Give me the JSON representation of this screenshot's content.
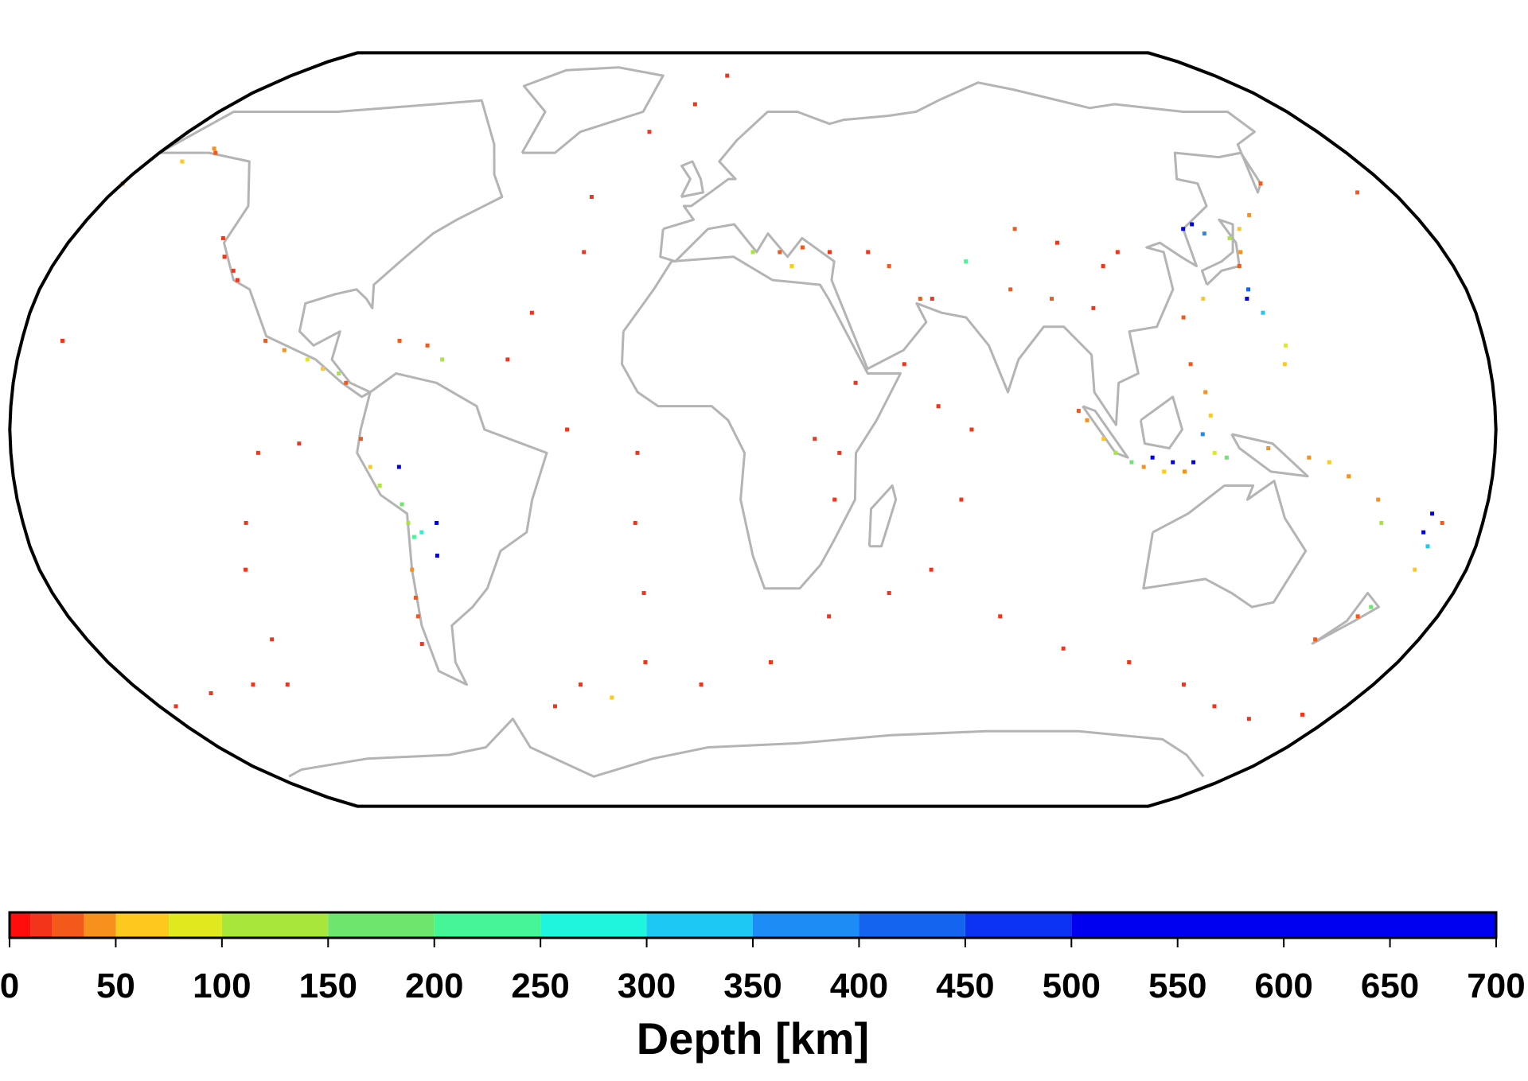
{
  "chart_data": {
    "type": "map",
    "points": [
      [
        -175,
        51,
        30
      ],
      [
        -165,
        53,
        40
      ],
      [
        -155,
        58,
        50
      ],
      [
        -150,
        61,
        40
      ],
      [
        -148,
        60,
        20
      ],
      [
        -125,
        41,
        10
      ],
      [
        -122,
        37,
        10
      ],
      [
        -118,
        34,
        10
      ],
      [
        -116,
        32,
        10
      ],
      [
        -105,
        19,
        20
      ],
      [
        -100,
        17,
        40
      ],
      [
        -94,
        15,
        80
      ],
      [
        -90,
        13,
        60
      ],
      [
        -86,
        12,
        100
      ],
      [
        -84,
        10,
        30
      ],
      [
        -72,
        19,
        20
      ],
      [
        -65,
        18,
        30
      ],
      [
        -61,
        15,
        120
      ],
      [
        -80,
        -2,
        30
      ],
      [
        -78,
        -8,
        60
      ],
      [
        -76,
        -12,
        100
      ],
      [
        -71,
        -16,
        150
      ],
      [
        -70,
        -20,
        120
      ],
      [
        -69,
        -23,
        220
      ],
      [
        -67,
        -22,
        250
      ],
      [
        -71,
        -30,
        40
      ],
      [
        -72,
        -36,
        30
      ],
      [
        -73,
        -40,
        20
      ],
      [
        -75,
        -46,
        10
      ],
      [
        -63,
        -20,
        560
      ],
      [
        -64,
        -27,
        580
      ],
      [
        -71,
        -8,
        600
      ],
      [
        -105,
        -5,
        10
      ],
      [
        -110,
        -20,
        10
      ],
      [
        -113,
        -30,
        10
      ],
      [
        -115,
        -45,
        10
      ],
      [
        -120,
        -55,
        10
      ],
      [
        -130,
        -55,
        10
      ],
      [
        -145,
        -57,
        10
      ],
      [
        -95,
        -3,
        10
      ],
      [
        -30,
        50,
        10
      ],
      [
        -29,
        38,
        10
      ],
      [
        -40,
        25,
        10
      ],
      [
        -45,
        15,
        10
      ],
      [
        -30,
        0,
        10
      ],
      [
        -13,
        -5,
        10
      ],
      [
        -14,
        -20,
        10
      ],
      [
        -13,
        -35,
        10
      ],
      [
        -15,
        -50,
        10
      ],
      [
        -18,
        65,
        10
      ],
      [
        -5,
        72,
        10
      ],
      [
        5,
        80,
        10
      ],
      [
        -27,
        -58,
        50
      ],
      [
        -35,
        -55,
        10
      ],
      [
        -45,
        -60,
        10
      ],
      [
        0,
        -55,
        10
      ],
      [
        20,
        -50,
        10
      ],
      [
        35,
        -40,
        10
      ],
      [
        50,
        -35,
        10
      ],
      [
        60,
        -30,
        10
      ],
      [
        66,
        -15,
        10
      ],
      [
        68,
        0,
        10
      ],
      [
        60,
        5,
        10
      ],
      [
        52,
        14,
        10
      ],
      [
        80,
        -40,
        10
      ],
      [
        100,
        -47,
        10
      ],
      [
        120,
        -50,
        10
      ],
      [
        140,
        -55,
        10
      ],
      [
        155,
        -60,
        10
      ],
      [
        170,
        -63,
        10
      ],
      [
        -175,
        -62,
        10
      ],
      [
        -160,
        -60,
        10
      ],
      [
        36,
        -5,
        10
      ],
      [
        30,
        -2,
        10
      ],
      [
        40,
        10,
        10
      ],
      [
        35,
        -15,
        10
      ],
      [
        22,
        38,
        20
      ],
      [
        25,
        35,
        60
      ],
      [
        15,
        38,
        100
      ],
      [
        28,
        39,
        20
      ],
      [
        35,
        38,
        10
      ],
      [
        45,
        38,
        10
      ],
      [
        50,
        35,
        20
      ],
      [
        57,
        28,
        30
      ],
      [
        60,
        28,
        10
      ],
      [
        70,
        36,
        200
      ],
      [
        80,
        30,
        20
      ],
      [
        90,
        28,
        20
      ],
      [
        100,
        26,
        10
      ],
      [
        95,
        40,
        10
      ],
      [
        105,
        35,
        10
      ],
      [
        85,
        43,
        20
      ],
      [
        110,
        38,
        10
      ],
      [
        94,
        4,
        30
      ],
      [
        96,
        2,
        40
      ],
      [
        100,
        -2,
        60
      ],
      [
        103,
        -5,
        100
      ],
      [
        107,
        -7,
        150
      ],
      [
        110,
        -8,
        40
      ],
      [
        115,
        -9,
        60
      ],
      [
        120,
        -9,
        40
      ],
      [
        112,
        -6,
        580
      ],
      [
        117,
        -7,
        600
      ],
      [
        122,
        -7,
        620
      ],
      [
        126,
        3,
        60
      ],
      [
        125,
        8,
        40
      ],
      [
        122,
        14,
        30
      ],
      [
        124,
        -1,
        350
      ],
      [
        127,
        -5,
        80
      ],
      [
        130,
        -6,
        150
      ],
      [
        140,
        -4,
        40
      ],
      [
        150,
        -6,
        40
      ],
      [
        155,
        -7,
        60
      ],
      [
        142,
        38,
        40
      ],
      [
        141,
        41,
        100
      ],
      [
        140,
        35,
        30
      ],
      [
        145,
        43,
        60
      ],
      [
        150,
        46,
        40
      ],
      [
        160,
        53,
        30
      ],
      [
        135,
        42,
        380
      ],
      [
        133,
        44,
        560
      ],
      [
        130,
        43,
        550
      ],
      [
        142,
        25,
        300
      ],
      [
        146,
        18,
        90
      ],
      [
        145,
        14,
        50
      ],
      [
        140,
        30,
        420
      ],
      [
        139,
        28,
        520
      ],
      [
        -175,
        -20,
        30
      ],
      [
        -178,
        -18,
        560
      ],
      [
        -179,
        -22,
        600
      ],
      [
        -177,
        -25,
        300
      ],
      [
        -178,
        -30,
        60
      ],
      [
        174,
        -40,
        20
      ],
      [
        176,
        -38,
        150
      ],
      [
        167,
        -45,
        30
      ],
      [
        168,
        -15,
        40
      ],
      [
        170,
        -20,
        100
      ],
      [
        160,
        -10,
        40
      ],
      [
        122,
        24,
        30
      ],
      [
        128,
        28,
        70
      ],
      [
        -155,
        19,
        10
      ]
    ],
    "colorbar": {
      "label": "Depth [km]",
      "lim": [
        0,
        700
      ],
      "ticks": [
        0,
        50,
        100,
        150,
        200,
        250,
        300,
        350,
        400,
        450,
        500,
        550,
        600,
        650,
        700
      ],
      "bounds": [
        0,
        10,
        20,
        35,
        50,
        75,
        100,
        150,
        200,
        250,
        300,
        350,
        400,
        450,
        500,
        700
      ],
      "colors": [
        "#ff0d0d",
        "#f4341a",
        "#f35a1a",
        "#f7901c",
        "#ffc81e",
        "#e0e81e",
        "#a8e63c",
        "#6ee66e",
        "#46f596",
        "#1ef5dc",
        "#1ec8f5",
        "#1e8cf5",
        "#1464f0",
        "#0a32f0",
        "#0000f0"
      ]
    }
  }
}
